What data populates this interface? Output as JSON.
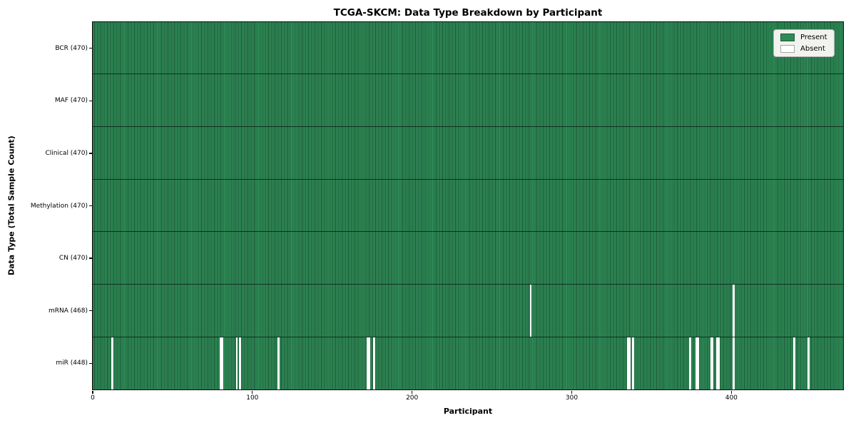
{
  "chart_data": {
    "type": "heatmap",
    "title": "TCGA-SKCM: Data Type Breakdown by Participant",
    "xlabel": "Participant",
    "ylabel": "Data Type (Total Sample Count)",
    "n_participants": 470,
    "x_ticks": [
      0,
      100,
      200,
      300,
      400
    ],
    "x_range": [
      0,
      470
    ],
    "grid": false,
    "legend_position": "upper right",
    "colors": {
      "present": "#2e8b57",
      "absent": "#ffffff",
      "cell_edge": "#1e5436",
      "spine": "#0d0d0d",
      "legend_bg": "#f2f2ef"
    },
    "legend": [
      {
        "label": "Present",
        "color": "#2e8b57"
      },
      {
        "label": "Absent",
        "color": "#ffffff"
      }
    ],
    "rows": [
      {
        "label": "BCR (470)",
        "data_type": "BCR",
        "present_count": 470,
        "absent_indices": []
      },
      {
        "label": "MAF (470)",
        "data_type": "MAF",
        "present_count": 470,
        "absent_indices": []
      },
      {
        "label": "Clinical (470)",
        "data_type": "Clinical",
        "present_count": 470,
        "absent_indices": []
      },
      {
        "label": "Methylation (470)",
        "data_type": "Methylation",
        "present_count": 470,
        "absent_indices": []
      },
      {
        "label": "CN (470)",
        "data_type": "CN",
        "present_count": 470,
        "absent_indices": []
      },
      {
        "label": "mRNA (468)",
        "data_type": "mRNA",
        "present_count": 468,
        "absent_indices": [
          274,
          401
        ]
      },
      {
        "label": "miR (448)",
        "data_type": "miR",
        "present_count": 448,
        "absent_indices": [
          12,
          80,
          81,
          90,
          92,
          116,
          172,
          173,
          176,
          335,
          336,
          338,
          374,
          378,
          379,
          387,
          388,
          391,
          392,
          401,
          439,
          448
        ]
      }
    ]
  }
}
